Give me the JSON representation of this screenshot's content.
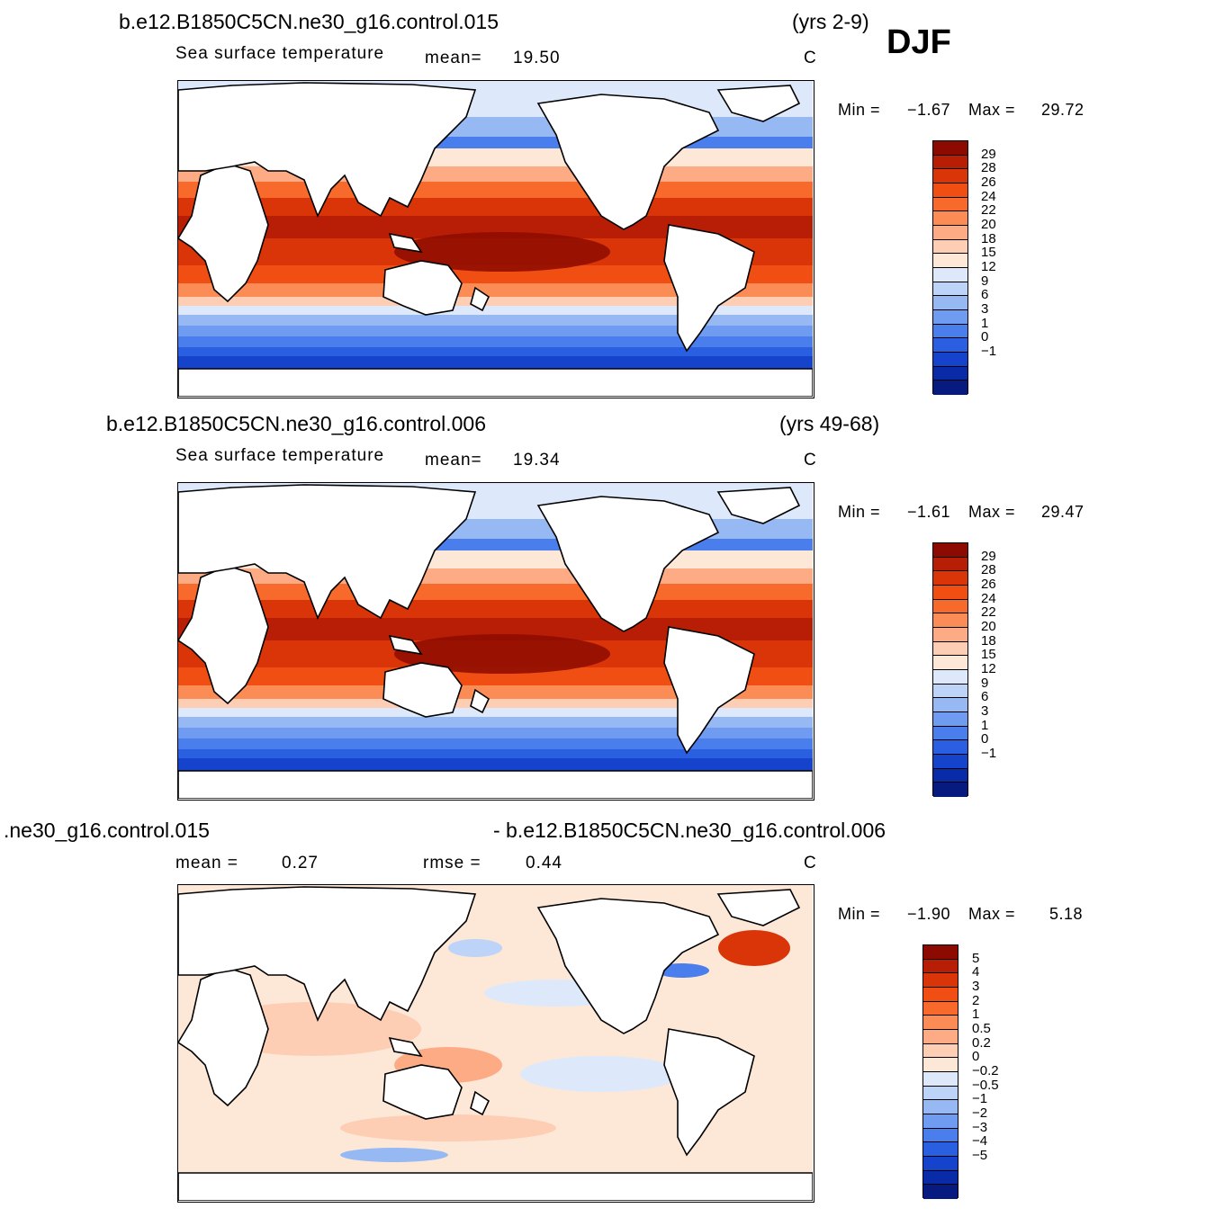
{
  "season": "DJF",
  "units": "C",
  "panels": [
    {
      "case": "b.e12.B1850C5CN.ne30_g16.control.015",
      "years": "(yrs 2-9)",
      "field": "Sea surface temperature",
      "stat1_label": "mean=",
      "stat1_value": "19.50",
      "min_label": "Min =",
      "min_value": "−1.67",
      "max_label": "Max =",
      "max_value": "29.72",
      "cbar_labels": [
        "29",
        "28",
        "26",
        "24",
        "22",
        "20",
        "18",
        "15",
        "12",
        "9",
        "6",
        "3",
        "1",
        "0",
        "−1"
      ]
    },
    {
      "case": "b.e12.B1850C5CN.ne30_g16.control.006",
      "years": "(yrs 49-68)",
      "field": "Sea surface temperature",
      "stat1_label": "mean=",
      "stat1_value": "19.34",
      "min_label": "Min =",
      "min_value": "−1.61",
      "max_label": "Max =",
      "max_value": "29.47",
      "cbar_labels": [
        "29",
        "28",
        "26",
        "24",
        "22",
        "20",
        "18",
        "15",
        "12",
        "9",
        "6",
        "3",
        "1",
        "0",
        "−1"
      ]
    },
    {
      "case_left": ".ne30_g16.control.015",
      "case_right": "- b.e12.B1850C5CN.ne30_g16.control.006",
      "stat1_label": "mean =",
      "stat1_value": "0.27",
      "stat2_label": "rmse =",
      "stat2_value": "0.44",
      "min_label": "Min =",
      "min_value": "−1.90",
      "max_label": "Max =",
      "max_value": "5.18",
      "cbar_labels": [
        "5",
        "4",
        "3",
        "2",
        "1",
        "0.5",
        "0.2",
        "0",
        "−0.2",
        "−0.5",
        "−1",
        "−2",
        "−3",
        "−4",
        "−5"
      ]
    }
  ],
  "colors": {
    "sst_scale": [
      "#8c0a00",
      "#b81d06",
      "#d93508",
      "#f04e12",
      "#f86a2c",
      "#fb8c55",
      "#fcab84",
      "#fdcdb4",
      "#fde8d8",
      "#dde9fb",
      "#bdd3f7",
      "#96b9f4",
      "#6f9cf0",
      "#4a7eec",
      "#2b5fe2",
      "#1643cc",
      "#0a2ba8",
      "#061a80"
    ],
    "diff_scale": [
      "#8c0a00",
      "#b81d06",
      "#d93508",
      "#f04e12",
      "#f86a2c",
      "#fb8c55",
      "#fcab84",
      "#fdcdb4",
      "#fde8d8",
      "#dde9fb",
      "#bdd3f7",
      "#96b9f4",
      "#6f9cf0",
      "#4a7eec",
      "#2b5fe2",
      "#1643cc",
      "#0a2ba8",
      "#061a80"
    ]
  }
}
